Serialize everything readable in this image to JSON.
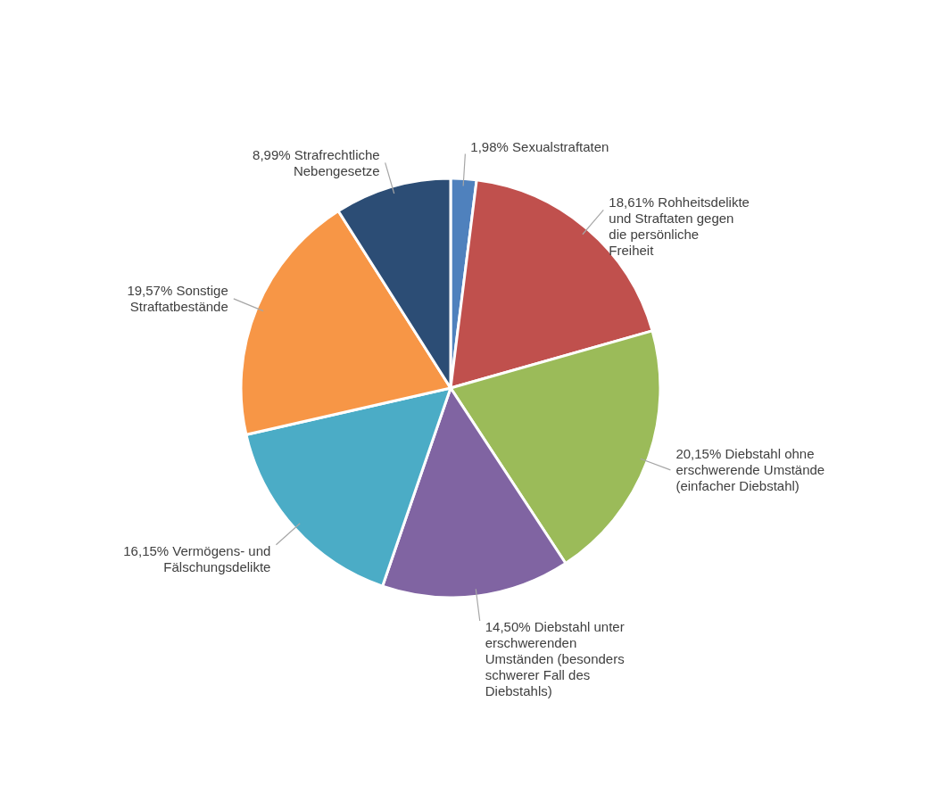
{
  "chart_data": {
    "type": "pie",
    "categories": [
      "Sexualstraftaten",
      "Rohheitsdelikte und Straftaten gegen die persönliche Freiheit",
      "Diebstahl ohne erschwerende Umstände (einfacher Diebstahl)",
      "Diebstahl unter erschwerenden Umständen (besonders schwerer Fall des Diebstahls)",
      "Vermögens- und Fälschungsdelikte",
      "Sonstige Straftatbestände",
      "Strafrechtliche Nebengesetze"
    ],
    "values": [
      1.98,
      18.61,
      20.15,
      14.5,
      16.15,
      19.57,
      8.99
    ],
    "value_labels": [
      "1,98%",
      "18,61%",
      "20,15%",
      "14,50%",
      "16,15%",
      "19,57%",
      "8,99%"
    ],
    "colors": [
      "#4f81bd",
      "#c0504d",
      "#9bbb59",
      "#8064a2",
      "#4bacc6",
      "#f79646",
      "#2c4d75"
    ],
    "legend": false
  }
}
